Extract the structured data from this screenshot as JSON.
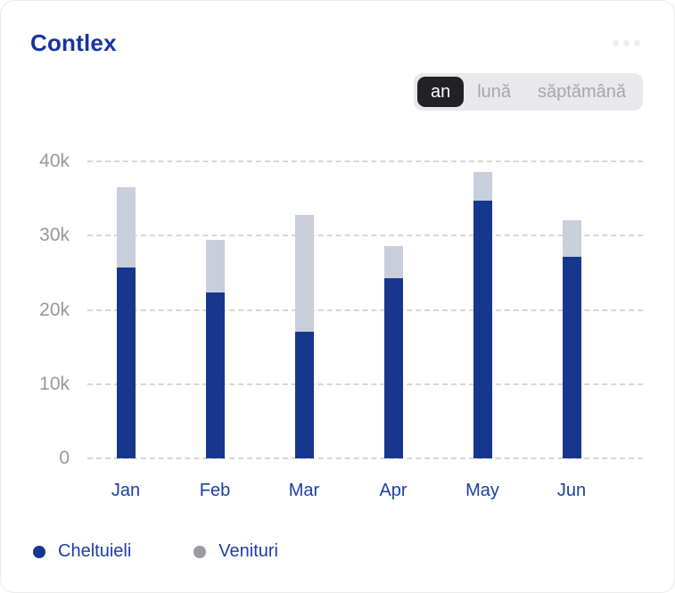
{
  "header": {
    "title": "Contlex",
    "more_menu_icon": "ellipsis-dots"
  },
  "period_selector": {
    "options": [
      {
        "label": "an",
        "active": true
      },
      {
        "label": "lună",
        "active": false
      },
      {
        "label": "săptămână",
        "active": false
      }
    ]
  },
  "chart_data": {
    "type": "bar",
    "stacked": true,
    "categories": [
      "Jan",
      "Feb",
      "Mar",
      "Apr",
      "May",
      "Jun"
    ],
    "series": [
      {
        "name": "Cheltuieli",
        "color": "#17378f",
        "values": [
          25700,
          22300,
          17000,
          24300,
          34700,
          27100
        ]
      },
      {
        "name": "Venituri",
        "color": "#c9cedb",
        "values": [
          10800,
          7100,
          15800,
          4300,
          3900,
          5000
        ]
      }
    ],
    "stack_totals": [
      36500,
      29400,
      32800,
      28600,
      38600,
      32100
    ],
    "title": "",
    "xlabel": "",
    "ylabel": "",
    "ylim": [
      0,
      40000
    ],
    "yticks": [
      {
        "value": 40000,
        "label": "40k"
      },
      {
        "value": 30000,
        "label": "30k"
      },
      {
        "value": 20000,
        "label": "20k"
      },
      {
        "value": 10000,
        "label": "10k"
      },
      {
        "value": 0,
        "label": "0"
      }
    ],
    "grid": "horizontal-dashed",
    "legend_position": "bottom-left"
  },
  "legend": {
    "items": [
      {
        "label": "Cheltuieli",
        "marker_color": "#17378f"
      },
      {
        "label": "Venituri",
        "marker_color": "#9a9aa0"
      }
    ]
  },
  "colors": {
    "title_text": "#16339e",
    "axis_label_text": "#1c3ea8",
    "ytick_text": "#97979c",
    "gridline": "#d6d6d8",
    "bar_blue": "#17378f",
    "bar_gray": "#c9cedb",
    "segment_bg": "#e9e9eb",
    "segment_active_bg": "#222226",
    "segment_active_text": "#ffffff",
    "segment_inactive_text": "#a6a6ab"
  }
}
